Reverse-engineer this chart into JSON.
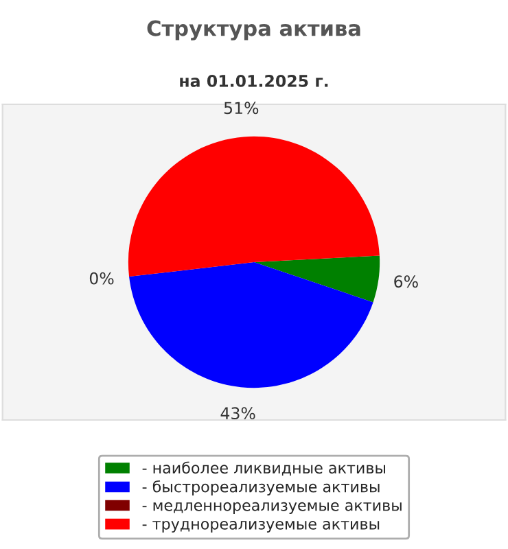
{
  "chart_data": {
    "type": "pie",
    "title": "Структура актива",
    "subtitle": "на 01.01.2025 г.",
    "categories": [
      "- наиболее ликвидные активы",
      "- быстрореализуемые активы",
      "- медленнореализуемые активы",
      "- труднореализуемые активы"
    ],
    "values": [
      6,
      43,
      0,
      51
    ],
    "value_labels": [
      "6%",
      "43%",
      "0%",
      "51%"
    ],
    "colors": [
      "#008000",
      "#0000ff",
      "#800000",
      "#ff0000"
    ],
    "legend": "bottom"
  }
}
